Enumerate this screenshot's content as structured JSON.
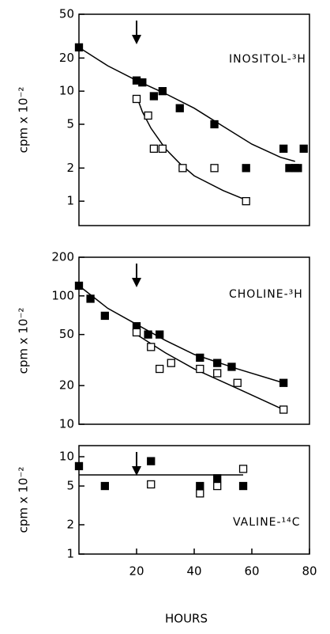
{
  "chart_data": [
    {
      "type": "scatter",
      "annotation": "INOSITOL-³H",
      "ylabel": "cpm x 10⁻²",
      "log_y": true,
      "xlim": [
        0,
        80
      ],
      "ylim": [
        0.6,
        50
      ],
      "yticks": [
        1,
        2,
        5,
        10,
        20,
        50
      ],
      "series": [
        {
          "marker": "filled",
          "color": "#000000",
          "x": [
            0,
            20,
            22,
            26,
            29,
            35,
            47,
            58,
            71,
            73,
            75,
            76,
            78
          ],
          "values": [
            25,
            12.5,
            12,
            9,
            10,
            7,
            5,
            2,
            3,
            2,
            2,
            2,
            3
          ]
        },
        {
          "marker": "open",
          "color": "#000000",
          "x": [
            20,
            24,
            26,
            29,
            36,
            47,
            58
          ],
          "values": [
            8.5,
            6,
            3,
            3,
            2,
            2,
            1
          ]
        }
      ],
      "fits": [
        {
          "x": [
            0,
            10,
            20,
            30,
            40,
            50,
            60,
            70,
            75
          ],
          "values": [
            25,
            17,
            12.5,
            9.5,
            7,
            4.8,
            3.3,
            2.5,
            2.3
          ]
        },
        {
          "x": [
            20,
            22,
            25,
            30,
            35,
            40,
            50,
            59
          ],
          "values": [
            9,
            6.5,
            4.6,
            3,
            2.2,
            1.7,
            1.25,
            1
          ]
        }
      ]
    },
    {
      "type": "scatter",
      "annotation": "CHOLINE-³H",
      "ylabel": "cpm x 10⁻²",
      "log_y": true,
      "xlim": [
        0,
        80
      ],
      "ylim": [
        10,
        200
      ],
      "yticks": [
        10,
        20,
        50,
        100,
        200
      ],
      "series": [
        {
          "marker": "filled",
          "color": "#000000",
          "x": [
            0,
            4,
            9,
            20,
            24,
            28,
            42,
            48,
            53,
            71
          ],
          "values": [
            120,
            95,
            70,
            58,
            50,
            50,
            33,
            30,
            28,
            21
          ]
        },
        {
          "marker": "open",
          "color": "#000000",
          "x": [
            20,
            25,
            28,
            32,
            42,
            48,
            55,
            71
          ],
          "values": [
            52,
            40,
            27,
            30,
            27,
            25,
            21,
            13
          ]
        }
      ],
      "fits": [
        {
          "x": [
            0,
            10,
            20,
            30,
            40,
            55,
            71
          ],
          "values": [
            120,
            80,
            60,
            45,
            35,
            27,
            21
          ]
        },
        {
          "x": [
            20,
            30,
            40,
            55,
            71
          ],
          "values": [
            50,
            36,
            27,
            19,
            13
          ]
        }
      ]
    },
    {
      "type": "scatter",
      "annotation": "VALINE-¹⁴C",
      "ylabel": "cpm x 10⁻²",
      "xlabel": "HOURS",
      "log_y": true,
      "xlim": [
        0,
        80
      ],
      "xticks": [
        20,
        40,
        60,
        80
      ],
      "ylim": [
        1,
        13
      ],
      "yticks": [
        1,
        2,
        5,
        10
      ],
      "series": [
        {
          "marker": "filled",
          "color": "#000000",
          "x": [
            0,
            9,
            25,
            42,
            48,
            57
          ],
          "values": [
            8,
            5,
            9,
            5,
            6,
            5
          ]
        },
        {
          "marker": "open",
          "color": "#000000",
          "x": [
            25,
            42,
            48,
            57
          ],
          "values": [
            5.2,
            4.2,
            5,
            7.5
          ]
        }
      ],
      "fits": [
        {
          "x": [
            0,
            57
          ],
          "values": [
            6.5,
            6.5
          ]
        }
      ]
    }
  ]
}
